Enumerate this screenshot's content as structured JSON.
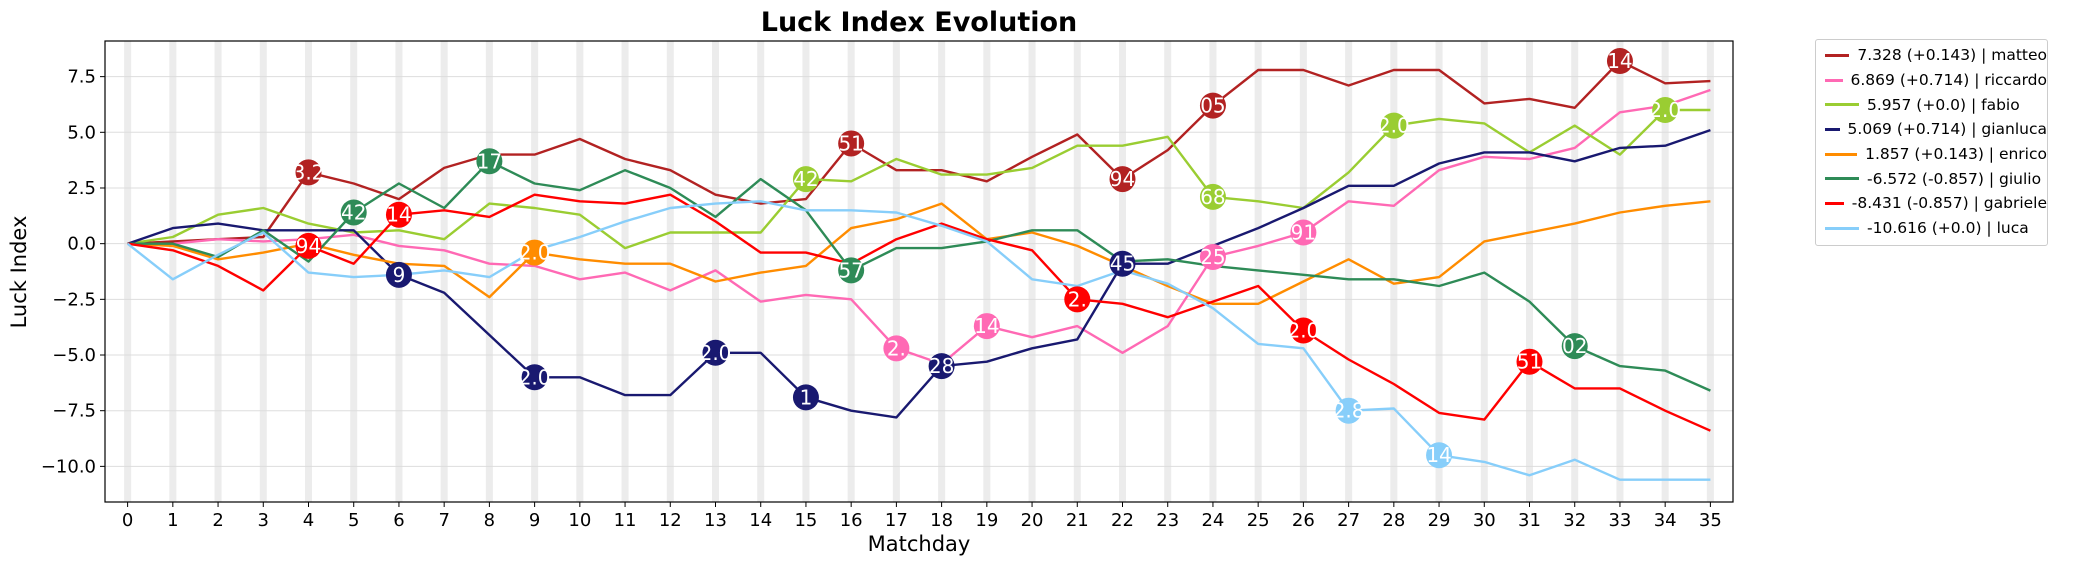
{
  "chart_data": {
    "type": "line",
    "title": "Luck Index Evolution",
    "xlabel": "Matchday",
    "ylabel": "Luck Index",
    "x": [
      0,
      1,
      2,
      3,
      4,
      5,
      6,
      7,
      8,
      9,
      10,
      11,
      12,
      13,
      14,
      15,
      16,
      17,
      18,
      19,
      20,
      21,
      22,
      23,
      24,
      25,
      26,
      27,
      28,
      29,
      30,
      31,
      32,
      33,
      34,
      35
    ],
    "xlim": [
      -0.5,
      35.5
    ],
    "ylim": [
      -11.6,
      9.1
    ],
    "yticks": [
      -10.0,
      -7.5,
      -5.0,
      -2.5,
      0.0,
      2.5,
      5.0,
      7.5
    ],
    "ytick_labels": [
      "−10.0",
      "−7.5",
      "−5.0",
      "−2.5",
      "0.0",
      "2.5",
      "5.0",
      "7.5"
    ],
    "grid": true,
    "legend_position": "outside-top-right",
    "series": [
      {
        "name": "matteo",
        "legend": "7.328 (+0.143) | matteo",
        "color": "#b22222",
        "values": [
          0,
          0.1,
          0.2,
          0.3,
          3.2,
          2.7,
          2.0,
          3.4,
          4.0,
          4.0,
          4.7,
          3.8,
          3.3,
          2.2,
          1.8,
          2.0,
          4.5,
          3.3,
          3.3,
          2.8,
          3.9,
          4.9,
          2.9,
          4.2,
          6.2,
          7.8,
          7.8,
          7.1,
          7.8,
          7.8,
          6.3,
          6.5,
          6.1,
          8.2,
          7.2,
          7.3
        ],
        "markers": [
          {
            "x": 4,
            "y": 3.2,
            "label": "3.2"
          },
          {
            "x": 16,
            "y": 4.5,
            "label": "51"
          },
          {
            "x": 22,
            "y": 2.9,
            "label": "94"
          },
          {
            "x": 24,
            "y": 6.2,
            "label": "05"
          },
          {
            "x": 33,
            "y": 8.2,
            "label": "14"
          }
        ]
      },
      {
        "name": "riccardo",
        "legend": "6.869 (+0.714) | riccardo",
        "color": "#ff69b4",
        "values": [
          0,
          0,
          0.2,
          0.1,
          0.2,
          0.4,
          -0.1,
          -0.3,
          -0.9,
          -1.0,
          -1.6,
          -1.3,
          -2.1,
          -1.2,
          -2.6,
          -2.3,
          -2.5,
          -4.7,
          -5.4,
          -3.7,
          -4.2,
          -3.7,
          -4.9,
          -3.7,
          -0.6,
          -0.1,
          0.5,
          1.9,
          1.7,
          3.3,
          3.9,
          3.8,
          4.3,
          5.9,
          6.2,
          6.9
        ],
        "markers": [
          {
            "x": 17,
            "y": -4.7,
            "label": "2."
          },
          {
            "x": 19,
            "y": -3.7,
            "label": "14"
          },
          {
            "x": 24,
            "y": -0.6,
            "label": "25"
          },
          {
            "x": 26,
            "y": 0.5,
            "label": "91"
          }
        ]
      },
      {
        "name": "fabio",
        "legend": "5.957 (+0.0) | fabio",
        "color": "#9acd32",
        "values": [
          0,
          0.3,
          1.3,
          1.6,
          0.9,
          0.5,
          0.6,
          0.2,
          1.8,
          1.6,
          1.3,
          -0.2,
          0.5,
          0.5,
          0.5,
          2.9,
          2.8,
          3.8,
          3.1,
          3.1,
          3.4,
          4.4,
          4.4,
          4.8,
          2.1,
          1.9,
          1.6,
          3.2,
          5.3,
          5.6,
          5.4,
          4.1,
          5.3,
          4.0,
          6.0,
          6.0
        ],
        "markers": [
          {
            "x": 15,
            "y": 2.9,
            "label": "42"
          },
          {
            "x": 24,
            "y": 2.1,
            "label": "68"
          },
          {
            "x": 28,
            "y": 5.3,
            "label": "2.0"
          },
          {
            "x": 34,
            "y": 6.0,
            "label": "2.0"
          }
        ]
      },
      {
        "name": "gianluca",
        "legend": "5.069 (+0.714) | gianluca",
        "color": "#191970",
        "values": [
          0,
          0.7,
          0.9,
          0.6,
          0.6,
          0.6,
          -1.4,
          -2.2,
          -4.1,
          -6.0,
          -6.0,
          -6.8,
          -6.8,
          -4.9,
          -4.9,
          -6.9,
          -7.5,
          -7.8,
          -5.5,
          -5.3,
          -4.7,
          -4.3,
          -0.9,
          -0.9,
          -0.1,
          0.7,
          1.6,
          2.6,
          2.6,
          3.6,
          4.1,
          4.1,
          3.7,
          4.3,
          4.4,
          5.1
        ],
        "markers": [
          {
            "x": 6,
            "y": -1.4,
            "label": "9"
          },
          {
            "x": 9,
            "y": -6.0,
            "label": "2.0"
          },
          {
            "x": 13,
            "y": -4.9,
            "label": "2.0"
          },
          {
            "x": 15,
            "y": -6.9,
            "label": "1"
          },
          {
            "x": 18,
            "y": -5.5,
            "label": "28"
          },
          {
            "x": 22,
            "y": -0.9,
            "label": "45"
          }
        ]
      },
      {
        "name": "enrico",
        "legend": "1.857 (+0.143) | enrico",
        "color": "#ff8c00",
        "values": [
          0,
          -0.1,
          -0.7,
          -0.4,
          0,
          -0.5,
          -0.9,
          -1.0,
          -2.4,
          -0.4,
          -0.7,
          -0.9,
          -0.9,
          -1.7,
          -1.3,
          -1.0,
          0.7,
          1.1,
          1.8,
          0.2,
          0.5,
          -0.1,
          -1.0,
          -1.9,
          -2.7,
          -2.7,
          -1.7,
          -0.7,
          -1.8,
          -1.5,
          0.1,
          0.5,
          0.9,
          1.4,
          1.7,
          1.9
        ],
        "markers": [
          {
            "x": 9,
            "y": -0.4,
            "label": "2.0"
          }
        ]
      },
      {
        "name": "giulio",
        "legend": "-6.572 (-0.857) | giulio",
        "color": "#2e8b57",
        "values": [
          0,
          0,
          -0.6,
          0.6,
          -0.8,
          1.4,
          2.7,
          1.6,
          3.7,
          2.7,
          2.4,
          3.3,
          2.5,
          1.2,
          2.9,
          1.5,
          -1.2,
          -0.2,
          -0.2,
          0.1,
          0.6,
          0.6,
          -0.8,
          -0.7,
          -1.0,
          -1.2,
          -1.4,
          -1.6,
          -1.6,
          -1.9,
          -1.3,
          -2.6,
          -4.6,
          -5.5,
          -5.7,
          -6.6
        ],
        "markers": [
          {
            "x": 5,
            "y": 1.4,
            "label": "42"
          },
          {
            "x": 8,
            "y": 3.7,
            "label": "17"
          },
          {
            "x": 16,
            "y": -1.2,
            "label": "57"
          },
          {
            "x": 32,
            "y": -4.6,
            "label": "02"
          }
        ]
      },
      {
        "name": "gabriele",
        "legend": "-8.431 (-0.857) | gabriele",
        "color": "#ff0000",
        "values": [
          0,
          -0.3,
          -1.0,
          -2.1,
          -0.1,
          -0.9,
          1.3,
          1.5,
          1.2,
          2.2,
          1.9,
          1.8,
          2.2,
          1.0,
          -0.4,
          -0.4,
          -0.9,
          0.2,
          0.9,
          0.2,
          -0.3,
          -2.5,
          -2.7,
          -3.3,
          -2.6,
          -1.9,
          -3.9,
          -5.2,
          -6.3,
          -7.6,
          -7.9,
          -5.3,
          -6.5,
          -6.5,
          -7.5,
          -8.4
        ],
        "markers": [
          {
            "x": 4,
            "y": -0.1,
            "label": "94"
          },
          {
            "x": 6,
            "y": 1.3,
            "label": "14"
          },
          {
            "x": 21,
            "y": -2.5,
            "label": "2."
          },
          {
            "x": 26,
            "y": -3.9,
            "label": "2.0"
          },
          {
            "x": 31,
            "y": -5.3,
            "label": "51"
          }
        ]
      },
      {
        "name": "luca",
        "legend": "-10.616 (+0.0) | luca",
        "color": "#87cefa",
        "values": [
          0,
          -1.6,
          -0.5,
          0.5,
          -1.3,
          -1.5,
          -1.4,
          -1.2,
          -1.5,
          -0.3,
          0.3,
          1.0,
          1.6,
          1.8,
          1.9,
          1.5,
          1.5,
          1.4,
          0.8,
          0.1,
          -1.6,
          -1.9,
          -1.2,
          -1.8,
          -2.9,
          -4.5,
          -4.7,
          -7.5,
          -7.4,
          -9.5,
          -9.8,
          -10.4,
          -9.7,
          -10.6,
          -10.6,
          -10.6
        ],
        "markers": [
          {
            "x": 27,
            "y": -7.5,
            "label": "2.8"
          },
          {
            "x": 29,
            "y": -9.5,
            "label": "14"
          }
        ]
      }
    ]
  }
}
